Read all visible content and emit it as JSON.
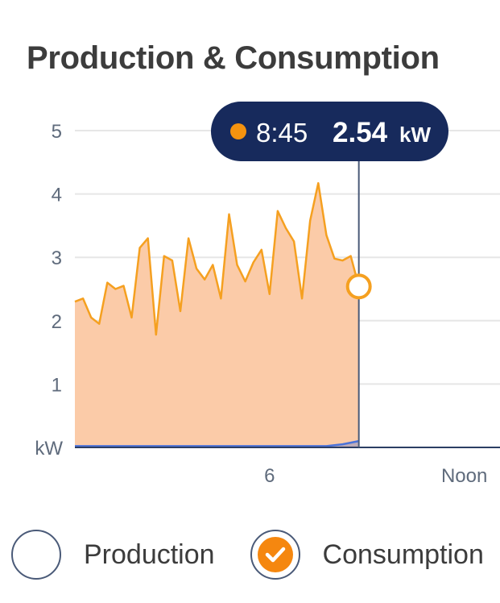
{
  "title": "Production & Consumption",
  "tooltip": {
    "time": "8:45",
    "value": "2.54",
    "unit": "kW"
  },
  "legend": [
    {
      "label": "Production",
      "checked": false
    },
    {
      "label": "Consumption",
      "checked": true
    }
  ],
  "colors": {
    "consumption_line": "#f5a020",
    "consumption_fill": "#fbcba8",
    "production_line": "#4a72d9",
    "tooltip_bg": "#172a5c",
    "tooltip_dot": "#f5930f",
    "grid": "#e6e6e6",
    "axis": "#5f6b7c"
  },
  "chart_data": {
    "type": "area",
    "y_unit_label": "kW",
    "y_ticks": [
      1,
      2,
      3,
      4,
      5
    ],
    "ylim": [
      0,
      5
    ],
    "x_unit": "hours",
    "xlim": [
      0,
      13.1
    ],
    "x_ticks": [
      {
        "value": 6,
        "label": "6"
      },
      {
        "value": 12,
        "label": "Noon"
      }
    ],
    "cursor_x": 8.75,
    "series": [
      {
        "name": "Consumption",
        "x": [
          0,
          0.25,
          0.5,
          0.75,
          1,
          1.25,
          1.5,
          1.75,
          2,
          2.25,
          2.5,
          2.75,
          3,
          3.25,
          3.5,
          3.75,
          4,
          4.25,
          4.5,
          4.75,
          5,
          5.25,
          5.5,
          5.75,
          6,
          6.25,
          6.5,
          6.75,
          7,
          7.25,
          7.5,
          7.75,
          8,
          8.25,
          8.5,
          8.75
        ],
        "values": [
          2.3,
          2.35,
          2.05,
          1.95,
          2.6,
          2.5,
          2.55,
          2.05,
          3.15,
          3.3,
          1.78,
          3.02,
          2.95,
          2.15,
          3.3,
          2.82,
          2.65,
          2.88,
          2.35,
          3.68,
          2.88,
          2.62,
          2.92,
          3.12,
          2.42,
          3.73,
          3.46,
          3.25,
          2.35,
          3.58,
          4.17,
          3.35,
          2.98,
          2.95,
          3.02,
          2.54
        ]
      },
      {
        "name": "Production",
        "x": [
          0,
          7.75,
          8.25,
          8.75
        ],
        "values": [
          0.02,
          0.02,
          0.05,
          0.1
        ]
      }
    ]
  }
}
